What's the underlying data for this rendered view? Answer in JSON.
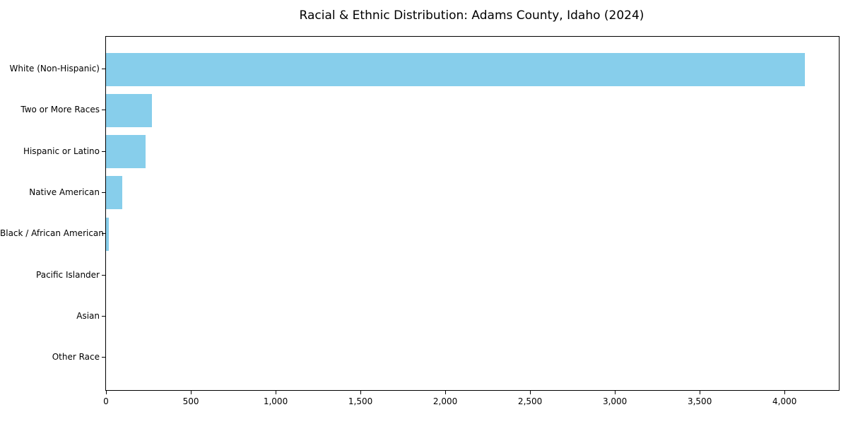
{
  "chart_data": {
    "type": "bar",
    "orientation": "horizontal",
    "title": "Racial & Ethnic Distribution: Adams County, Idaho (2024)",
    "categories": [
      "White (Non-Hispanic)",
      "Two or More Races",
      "Hispanic or Latino",
      "Native American",
      "Black / African American",
      "Pacific Islander",
      "Asian",
      "Other Race"
    ],
    "values": [
      4120,
      270,
      235,
      94,
      15,
      0,
      0,
      0
    ],
    "bar_color": "#87CEEB",
    "xlabel": "",
    "ylabel": "",
    "xlim": [
      0,
      4320
    ],
    "xticks": [
      0,
      500,
      1000,
      1500,
      2000,
      2500,
      3000,
      3500,
      4000
    ],
    "xtick_labels": [
      "0",
      "500",
      "1,000",
      "1,500",
      "2,000",
      "2,500",
      "3,000",
      "3,500",
      "4,000"
    ],
    "grid": false,
    "legend": "none",
    "frame": "full-box"
  }
}
